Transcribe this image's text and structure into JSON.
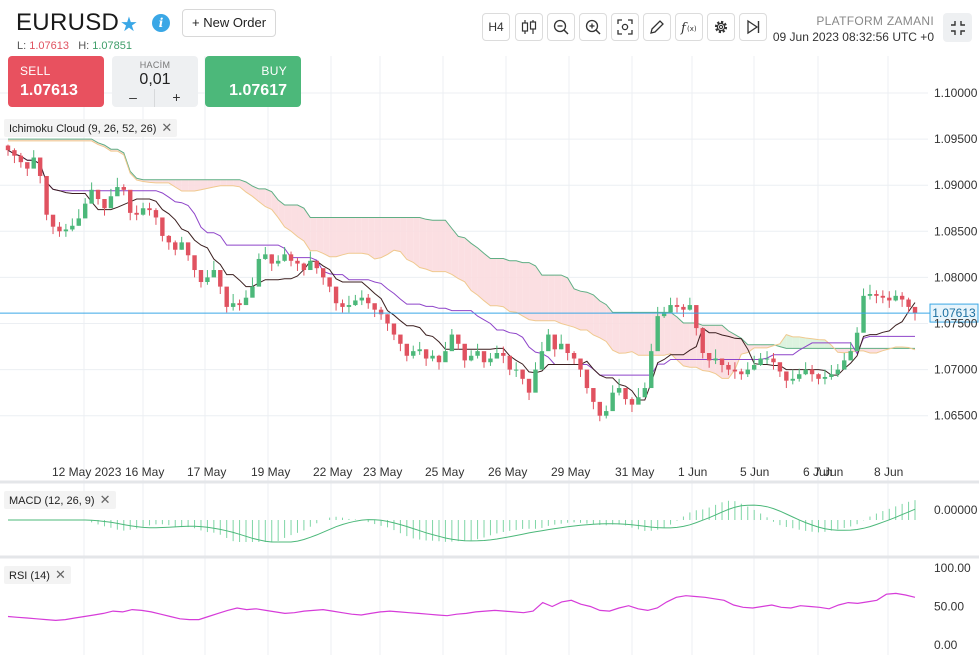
{
  "header": {
    "symbol": "EURUSD",
    "new_order_label": "+ New Order",
    "low_label": "L:",
    "low_value": "1.07613",
    "high_label": "H:",
    "high_value": "1.07851"
  },
  "trade_panel": {
    "sell_label": "SELL",
    "sell_price": "1.07613",
    "volume_label": "HACİM",
    "volume_value": "0,01",
    "minus_label": "–",
    "plus_label": "+",
    "buy_label": "BUY",
    "buy_price": "1.07617"
  },
  "toolbar": {
    "timeframe_label": "H4",
    "icons": [
      "candlestick-icon",
      "zoom-out-icon",
      "zoom-in-icon",
      "screenshot-icon",
      "pencil-icon",
      "function-icon",
      "gear-icon",
      "play-icon"
    ]
  },
  "platform_time": {
    "label": "PLATFORM ZAMANI",
    "value": "09 Jun 2023 08:32:56 UTC +0"
  },
  "indicators": {
    "ichimoku": "Ichimoku Cloud (9, 26, 52, 26)",
    "macd": "MACD (12, 26, 9)",
    "rsi": "RSI (14)"
  },
  "chart_data": {
    "type": "candlestick",
    "symbol": "EURUSD",
    "timeframe": "H4",
    "current_price": "1.07613",
    "y_ticks": [
      "1.10000",
      "1.09500",
      "1.09000",
      "1.08500",
      "1.08000",
      "1.07500",
      "1.07000",
      "1.06500"
    ],
    "ylim": [
      1.0615,
      1.1035
    ],
    "x_labels": [
      "12 May 2023",
      "16 May",
      "17 May",
      "19 May",
      "22 May",
      "23 May",
      "25 May",
      "26 May",
      "29 May",
      "31 May",
      "1 Jun",
      "5 Jun",
      "6 Jun",
      "7 Jun",
      "8 Jun"
    ],
    "close": [
      1.0938,
      1.0932,
      1.0925,
      1.0918,
      1.093,
      1.091,
      1.0868,
      1.0855,
      1.085,
      1.0852,
      1.0856,
      1.0864,
      1.088,
      1.0895,
      1.0885,
      1.0875,
      1.0888,
      1.0898,
      1.0895,
      1.087,
      1.0868,
      1.0875,
      1.0873,
      1.0865,
      1.0845,
      1.0838,
      1.083,
      1.0838,
      1.0824,
      1.0808,
      1.0795,
      1.08,
      1.0808,
      1.079,
      1.0768,
      1.0772,
      1.077,
      1.0778,
      1.079,
      1.082,
      1.0825,
      1.0815,
      1.0818,
      1.0825,
      1.0818,
      1.0815,
      1.0808,
      1.0818,
      1.081,
      1.08,
      1.079,
      1.0772,
      1.0768,
      1.077,
      1.0775,
      1.0778,
      1.0772,
      1.0765,
      1.076,
      1.075,
      1.0738,
      1.0728,
      1.0715,
      1.072,
      1.0722,
      1.0712,
      1.0715,
      1.0708,
      1.072,
      1.0738,
      1.0728,
      1.071,
      1.0715,
      1.072,
      1.0708,
      1.0712,
      1.0718,
      1.0715,
      1.07,
      1.07,
      1.069,
      1.0675,
      1.07,
      1.072,
      1.0738,
      1.0722,
      1.0728,
      1.0718,
      1.0712,
      1.07,
      1.068,
      1.0665,
      1.065,
      1.0655,
      1.0675,
      1.068,
      1.0668,
      1.0662,
      1.067,
      1.068,
      1.072,
      1.0758,
      1.0762,
      1.077,
      1.0768,
      1.0765,
      1.077,
      1.0745,
      1.0718,
      1.071,
      1.0712,
      1.0705,
      1.07,
      1.0698,
      1.0695,
      1.07,
      1.0705,
      1.0712,
      1.0712,
      1.0708,
      1.0698,
      1.0688,
      1.069,
      1.0695,
      1.07,
      1.0695,
      1.069,
      1.0692,
      1.0695,
      1.07,
      1.071,
      1.072,
      1.074,
      1.078,
      1.0782,
      1.078,
      1.0778,
      1.0775,
      1.078,
      1.0776,
      1.0768,
      1.07613
    ],
    "macd_ticks": [
      "0.00000"
    ],
    "rsi_ticks": [
      "100.00",
      "50.00",
      "0.00"
    ],
    "rsi": [
      37,
      36,
      35,
      34,
      33,
      32,
      33,
      35,
      37,
      39,
      41,
      44,
      43,
      46,
      45,
      43,
      40,
      37,
      34,
      33,
      33,
      37,
      41,
      45,
      48,
      46,
      47,
      45,
      43,
      41,
      42,
      44,
      45,
      46,
      44,
      42,
      40,
      39,
      41,
      43,
      44,
      43,
      42,
      41,
      40,
      39,
      38,
      40,
      41,
      43,
      44,
      45,
      44,
      43,
      42,
      44,
      55,
      50,
      56,
      58,
      53,
      50,
      45,
      44,
      48,
      51,
      47,
      45,
      48,
      56,
      62,
      64,
      63,
      62,
      60,
      58,
      52,
      49,
      48,
      50,
      52,
      49,
      48,
      51,
      50,
      49,
      47,
      52,
      55,
      54,
      56,
      58,
      66,
      67,
      65,
      62
    ]
  }
}
